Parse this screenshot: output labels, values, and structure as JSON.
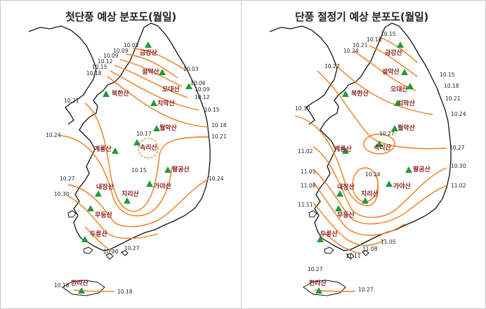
{
  "left": {
    "title": "첫단풍 예상 분포도(월일)",
    "mountains": [
      "금강산",
      "설악산",
      "오대산",
      "북한산",
      "치악산",
      "월악산",
      "속리산",
      "계룡산",
      "팔공산",
      "내장산",
      "가야산",
      "지리산",
      "무등산",
      "두륜산",
      "한라산"
    ],
    "isolines": [
      "10.03",
      "10.09",
      "10.09",
      "10.12",
      "10.15",
      "10.18",
      "10.03",
      "10.06",
      "10.09",
      "10.12",
      "10.15",
      "10.18",
      "10.21",
      "10.17",
      "10.21",
      "10.24",
      "10.15",
      "10.27",
      "10.30",
      "10.24",
      "10.27",
      "10.30",
      "10.18",
      "10.18"
    ]
  },
  "right": {
    "title": "단풍 절정기 예상 분포도(월일)",
    "mountains": [
      "금강산",
      "설악산",
      "오대산",
      "북한산",
      "치악산",
      "월악산",
      "속리산",
      "계룡산",
      "팔공산",
      "내장산",
      "가야산",
      "지리산",
      "무등산",
      "두륜산",
      "한라산"
    ],
    "isolines": [
      "10.15",
      "10.18",
      "10.21",
      "10.24",
      "10.27",
      "10.15",
      "10.18",
      "10.21",
      "10.24",
      "10.30",
      "10.27",
      "11.02",
      "10.24",
      "10.27",
      "10.30",
      "11.02",
      "11.05",
      "11.08",
      "11.11",
      "11.05",
      "11.08",
      "11.11",
      "10.27",
      "10.27"
    ]
  },
  "colors": {
    "isoline": "#f07b1e",
    "mountain_marker": "#1f9b3a",
    "mountain_label": "#8b1a1a"
  }
}
